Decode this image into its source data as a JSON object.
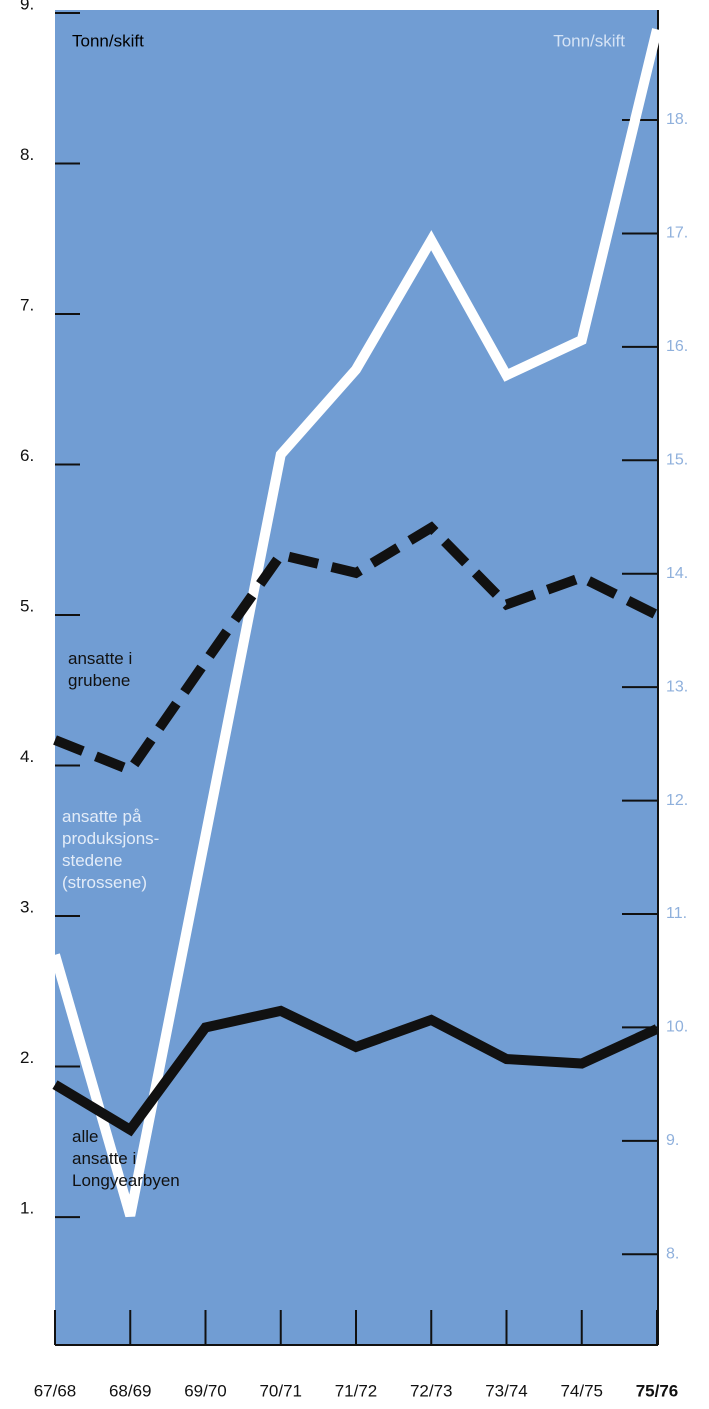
{
  "chart_data": {
    "type": "line",
    "y_label": "Tonn/skift",
    "y2_label": "Tonn/skift",
    "categories": [
      "67/68",
      "68/69",
      "69/70",
      "70/71",
      "71/72",
      "72/73",
      "73/74",
      "74/75",
      "75/76"
    ],
    "series": [
      {
        "name": "ansatte på\nproduksjons-\nstedene\n(strossene)",
        "color": "#ffffff",
        "axis": "y2",
        "dash": false,
        "values": [
          10.64,
          8.34,
          11.69,
          15.05,
          15.8,
          16.94,
          15.75,
          16.06,
          18.8
        ]
      },
      {
        "name": "ansatte i\ngrubene",
        "color": "#111111",
        "dash": true,
        "values": [
          4.17,
          3.97,
          4.69,
          5.4,
          5.28,
          5.58,
          5.07,
          5.25,
          5.0
        ]
      },
      {
        "name": "alle\nansatte i\nLongyearbyen",
        "color": "#111111",
        "dash": false,
        "values": [
          1.88,
          1.58,
          2.26,
          2.37,
          2.13,
          2.31,
          2.05,
          2.02,
          2.25
        ]
      }
    ],
    "ylim": [
      0.15,
      9.02
    ],
    "yticks": [
      {
        "value": 1,
        "label": "1."
      },
      {
        "value": 2,
        "label": "2."
      },
      {
        "value": 3,
        "label": "3."
      },
      {
        "value": 4,
        "label": "4."
      },
      {
        "value": 5,
        "label": "5."
      },
      {
        "value": 6,
        "label": "6."
      },
      {
        "value": 7,
        "label": "7."
      },
      {
        "value": 8,
        "label": "8."
      },
      {
        "value": 9,
        "label": "9."
      }
    ],
    "y2lim": [
      7.2,
      18.97
    ],
    "y2ticks": [
      {
        "value": 8,
        "label": "8."
      },
      {
        "value": 9,
        "label": "9."
      },
      {
        "value": 10,
        "label": "10."
      },
      {
        "value": 11,
        "label": "11."
      },
      {
        "value": 12,
        "label": "12."
      },
      {
        "value": 13,
        "label": "13."
      },
      {
        "value": 14,
        "label": "14."
      },
      {
        "value": 15,
        "label": "15."
      },
      {
        "value": 16,
        "label": "16."
      },
      {
        "value": 17,
        "label": "17."
      },
      {
        "value": 18,
        "label": "18."
      }
    ],
    "background": "#719dd3",
    "y2_color": "#d5e3f5"
  }
}
